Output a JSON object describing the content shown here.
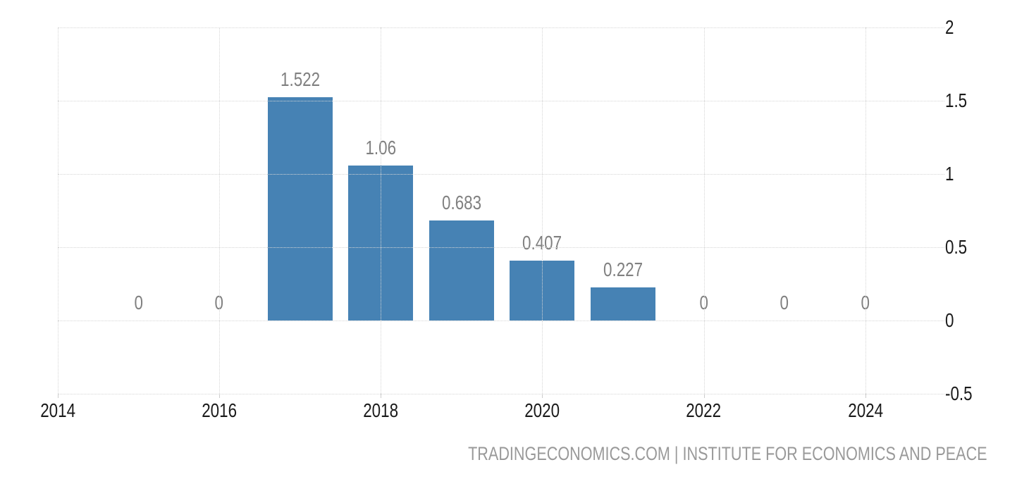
{
  "chart_data": {
    "type": "bar",
    "x": [
      2015,
      2016,
      2017,
      2018,
      2019,
      2020,
      2021,
      2022,
      2023,
      2024
    ],
    "values": [
      0,
      0,
      1.522,
      1.06,
      0.683,
      0.407,
      0.227,
      0,
      0,
      0
    ],
    "point_labels": [
      "0",
      "0",
      "1.522",
      "1.06",
      "0.683",
      "0.407",
      "0.227",
      "0",
      "0",
      "0"
    ],
    "title": "",
    "xlabel": "",
    "ylabel": "",
    "x_ticks": [
      2014,
      2016,
      2018,
      2020,
      2022,
      2024
    ],
    "x_tick_labels": [
      "2014",
      "2016",
      "2018",
      "2020",
      "2022",
      "2024"
    ],
    "y_ticks": [
      2,
      1.5,
      1,
      0.5,
      0,
      -0.5
    ],
    "y_tick_labels": [
      "2",
      "1.5",
      "1",
      "0.5",
      "0",
      "-0.5"
    ],
    "xlim": [
      2014,
      2024.98
    ],
    "ylim": [
      -0.5,
      2
    ],
    "grid": true,
    "legend": false,
    "y_axis_side": "right",
    "bar_color": "#4682b4",
    "data_label_color": "#808080",
    "axis_text_color": "#1a1a1a",
    "grid_color": "#d5d5d5"
  },
  "footer": {
    "attribution": "TRADINGECONOMICS.COM | INSTITUTE FOR ECONOMICS AND PEACE"
  }
}
